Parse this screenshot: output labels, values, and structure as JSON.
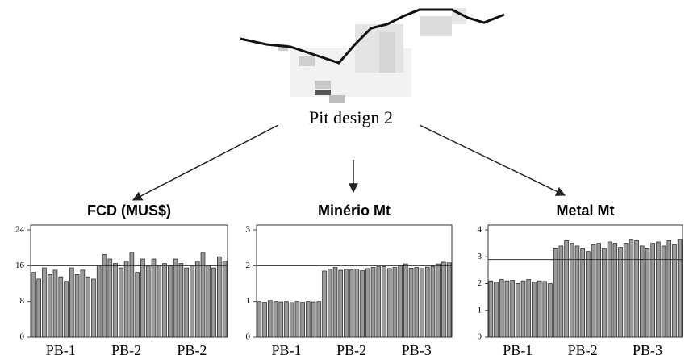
{
  "diagram": {
    "label": "Pit design 2"
  },
  "chart_data": [
    {
      "type": "bar",
      "title": "FCD  (MUS$)",
      "color": "#9a9a9a",
      "ylim": [
        0,
        24
      ],
      "yticks": [
        0,
        8,
        16,
        24
      ],
      "reference_line": 16,
      "categories": [
        null,
        null,
        null,
        null,
        null,
        "PB-1",
        null,
        null,
        null,
        null,
        null,
        null,
        null,
        null,
        null,
        null,
        null,
        "PB-2",
        null,
        null,
        null,
        null,
        null,
        null,
        null,
        null,
        null,
        null,
        null,
        "PB-2",
        null,
        null,
        null,
        null,
        null,
        null
      ],
      "values": [
        14.5,
        13,
        15.5,
        14,
        15,
        13.5,
        12.5,
        15.5,
        14,
        15,
        13.5,
        13,
        16,
        18.5,
        17.5,
        16.5,
        15.5,
        17,
        19,
        14.5,
        17.5,
        16,
        17.5,
        16,
        16.5,
        16,
        17.5,
        16.5,
        15.5,
        16,
        17,
        19,
        16,
        15.5,
        18,
        17
      ]
    },
    {
      "type": "bar",
      "title": "Minério Mt",
      "color": "#9a9a9a",
      "ylim": [
        0,
        3
      ],
      "yticks": [
        0,
        1,
        2,
        3
      ],
      "reference_line": 2,
      "categories": [
        null,
        null,
        null,
        null,
        null,
        "PB-1",
        null,
        null,
        null,
        null,
        null,
        null,
        null,
        null,
        null,
        null,
        null,
        "PB-2",
        null,
        null,
        null,
        null,
        null,
        null,
        null,
        null,
        null,
        null,
        null,
        "PB-3",
        null,
        null,
        null,
        null,
        null,
        null
      ],
      "values": [
        1.0,
        0.98,
        1.02,
        1.0,
        0.99,
        1.0,
        0.97,
        1.0,
        0.98,
        1.0,
        0.99,
        1.0,
        1.85,
        1.9,
        1.95,
        1.87,
        1.9,
        1.88,
        1.9,
        1.86,
        1.92,
        1.95,
        1.97,
        1.98,
        1.92,
        1.95,
        2.0,
        2.05,
        1.93,
        1.95,
        1.92,
        1.96,
        1.98,
        2.05,
        2.1,
        2.08
      ]
    },
    {
      "type": "bar",
      "title": "Metal Mt",
      "color": "#9a9a9a",
      "ylim": [
        0,
        4
      ],
      "yticks": [
        0,
        1,
        2,
        3,
        4
      ],
      "reference_line": 2.9,
      "categories": [
        null,
        null,
        null,
        null,
        null,
        "PB-1",
        null,
        null,
        null,
        null,
        null,
        null,
        null,
        null,
        null,
        null,
        null,
        "PB-2",
        null,
        null,
        null,
        null,
        null,
        null,
        null,
        null,
        null,
        null,
        null,
        "PB-3",
        null,
        null,
        null,
        null,
        null,
        null
      ],
      "values": [
        2.1,
        2.05,
        2.15,
        2.1,
        2.12,
        2.0,
        2.1,
        2.15,
        2.05,
        2.1,
        2.08,
        2.0,
        3.3,
        3.4,
        3.6,
        3.5,
        3.4,
        3.3,
        3.2,
        3.45,
        3.5,
        3.3,
        3.55,
        3.5,
        3.35,
        3.5,
        3.65,
        3.6,
        3.4,
        3.3,
        3.5,
        3.55,
        3.4,
        3.6,
        3.45,
        3.65
      ]
    }
  ]
}
